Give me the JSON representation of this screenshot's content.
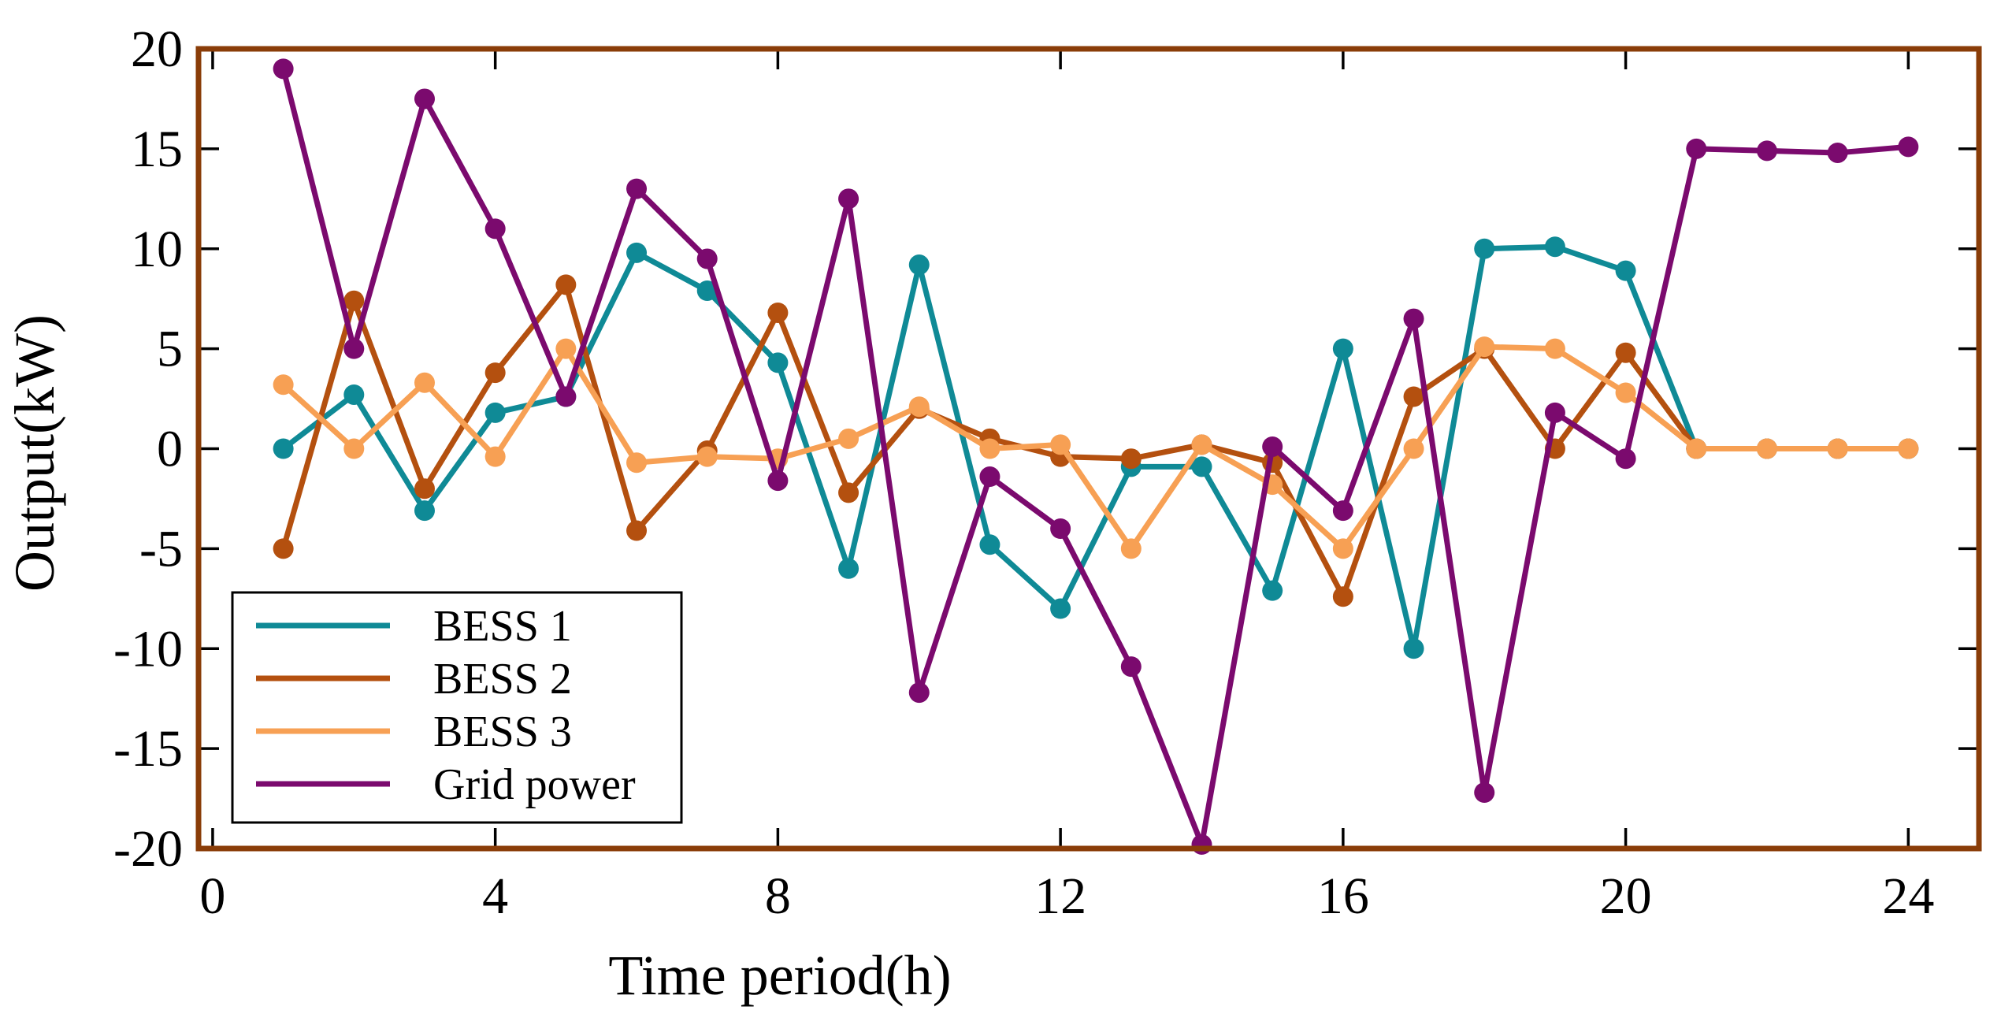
{
  "chart_data": {
    "type": "line",
    "title": "",
    "xlabel": "Time period(h)",
    "ylabel": "Output(kW)",
    "xlim": [
      -0.2,
      25
    ],
    "ylim": [
      -20,
      20
    ],
    "x_ticks": [
      0,
      4,
      8,
      12,
      16,
      20,
      24
    ],
    "y_ticks": [
      20,
      15,
      10,
      5,
      0,
      -5,
      -10,
      -15,
      -20
    ],
    "x_tick_labels": [
      "0",
      "4",
      "8",
      "12",
      "16",
      "20",
      "24"
    ],
    "y_tick_labels": [
      "20",
      "15",
      "10",
      "5",
      "0",
      "-5",
      "-10",
      "-15",
      "-20"
    ],
    "grid": false,
    "legend_position": "bottom-left",
    "frame_color": "#8a3d08",
    "x": [
      1,
      2,
      3,
      4,
      5,
      6,
      7,
      8,
      9,
      10,
      11,
      12,
      13,
      14,
      15,
      16,
      17,
      18,
      19,
      20,
      21,
      22,
      23,
      24
    ],
    "series": [
      {
        "name": "BESS 1",
        "color": "#0f8a96",
        "values": [
          0,
          2.7,
          -3.1,
          1.8,
          2.6,
          9.8,
          7.9,
          4.3,
          -6.0,
          9.2,
          -4.8,
          -8.0,
          -0.9,
          -0.9,
          -7.1,
          5.0,
          -10.0,
          10.0,
          10.1,
          8.9,
          0,
          0,
          0,
          0
        ]
      },
      {
        "name": "BESS 2",
        "color": "#b4500f",
        "values": [
          -5.0,
          7.4,
          -2.0,
          3.8,
          8.2,
          -4.1,
          -0.1,
          6.8,
          -2.2,
          2.0,
          0.5,
          -0.4,
          -0.5,
          0.2,
          -0.7,
          -7.4,
          2.6,
          5.0,
          0,
          4.8,
          0,
          0,
          0,
          0
        ]
      },
      {
        "name": "BESS 3",
        "color": "#f7a054",
        "values": [
          3.2,
          0,
          3.3,
          -0.4,
          5.0,
          -0.7,
          -0.4,
          -0.5,
          0.5,
          2.1,
          0,
          0.2,
          -5.0,
          0.2,
          -1.8,
          -5.0,
          0,
          5.1,
          5.0,
          2.8,
          0,
          0,
          0,
          0
        ]
      },
      {
        "name": "Grid power",
        "color": "#7b0a6e",
        "values": [
          19.0,
          5.0,
          17.5,
          11.0,
          2.6,
          13.0,
          9.5,
          -1.6,
          12.5,
          -12.2,
          -1.4,
          -4.0,
          -10.9,
          -19.8,
          0.1,
          -3.1,
          6.5,
          -17.2,
          1.8,
          -0.5,
          15.0,
          14.9,
          14.8,
          15.1
        ]
      }
    ]
  }
}
